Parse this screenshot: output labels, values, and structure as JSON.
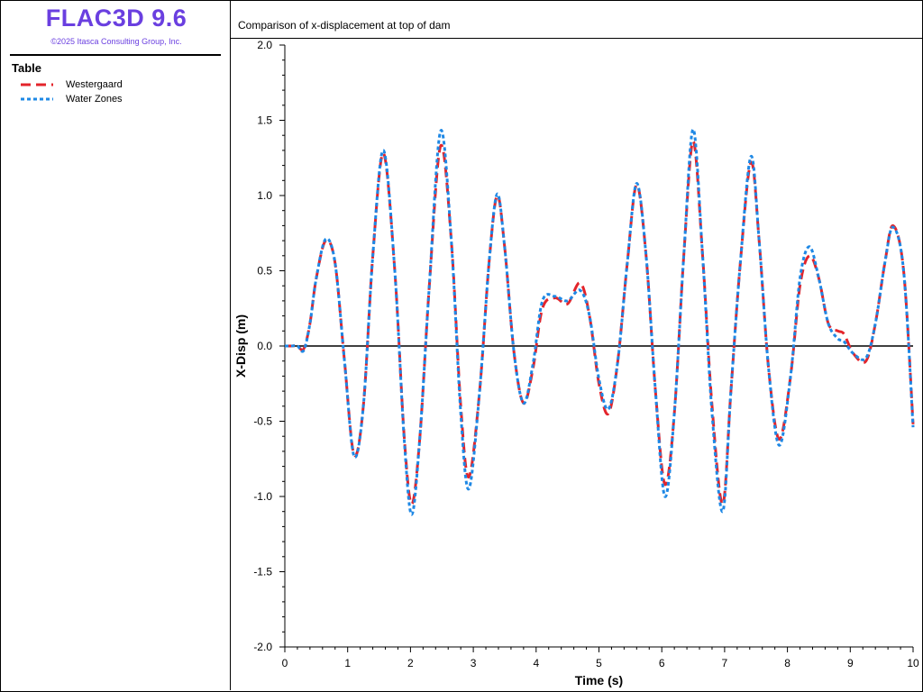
{
  "app": {
    "title": "FLAC3D 9.6",
    "copyright": "©2025 Itasca Consulting Group, Inc."
  },
  "legend": {
    "title": "Table",
    "items": [
      {
        "label": "Westergaard",
        "color": "#e3242b",
        "style": "dashed-long"
      },
      {
        "label": "Water Zones",
        "color": "#1e88e5",
        "style": "dashed-short"
      }
    ]
  },
  "chart_data": {
    "type": "line",
    "title": "Comparison of x-displacement at top of dam",
    "xlabel": "Time (s)",
    "ylabel": "X-Disp (m)",
    "xlim": [
      0,
      10
    ],
    "ylim": [
      -2.0,
      2.0
    ],
    "x_ticks": [
      "0",
      "1",
      "2",
      "3",
      "4",
      "5",
      "6",
      "7",
      "8",
      "9",
      "10"
    ],
    "y_ticks": [
      "2.0",
      "1.5",
      "1.0",
      "0.5",
      "0.0",
      "-0.5",
      "-1.0",
      "-1.5",
      "-2.0"
    ],
    "zero_line": true,
    "series": [
      {
        "name": "Westergaard",
        "color": "#e3242b",
        "x": [
          0,
          0.1,
          0.2,
          0.3,
          0.4,
          0.5,
          0.65,
          0.8,
          0.95,
          1.1,
          1.25,
          1.4,
          1.57,
          1.75,
          1.9,
          2.02,
          2.15,
          2.3,
          2.48,
          2.65,
          2.8,
          2.93,
          3.1,
          3.25,
          3.38,
          3.5,
          3.65,
          3.8,
          3.95,
          4.1,
          4.3,
          4.5,
          4.7,
          4.85,
          5.0,
          5.15,
          5.3,
          5.45,
          5.6,
          5.75,
          5.9,
          6.05,
          6.2,
          6.35,
          6.5,
          6.65,
          6.8,
          6.97,
          7.1,
          7.25,
          7.42,
          7.55,
          7.7,
          7.87,
          8.05,
          8.2,
          8.35,
          8.5,
          8.65,
          8.8,
          8.9,
          9.05,
          9.25,
          9.4,
          9.55,
          9.68,
          9.85,
          10.0
        ],
        "y": [
          0.0,
          0.0,
          0.0,
          -0.02,
          0.15,
          0.45,
          0.7,
          0.55,
          -0.1,
          -0.72,
          -0.4,
          0.6,
          1.28,
          0.5,
          -0.6,
          -1.05,
          -0.6,
          0.4,
          1.33,
          0.7,
          -0.4,
          -0.87,
          -0.3,
          0.55,
          1.0,
          0.65,
          -0.05,
          -0.38,
          -0.15,
          0.25,
          0.32,
          0.28,
          0.42,
          0.2,
          -0.25,
          -0.45,
          -0.1,
          0.55,
          1.07,
          0.6,
          -0.3,
          -0.92,
          -0.45,
          0.6,
          1.36,
          0.6,
          -0.4,
          -1.05,
          -0.3,
          0.55,
          1.22,
          0.7,
          -0.15,
          -0.62,
          -0.2,
          0.4,
          0.6,
          0.45,
          0.15,
          0.1,
          0.08,
          -0.05,
          -0.1,
          0.15,
          0.55,
          0.8,
          0.5,
          -0.52
        ]
      },
      {
        "name": "Water Zones",
        "color": "#1e88e5",
        "x": [
          0,
          0.1,
          0.2,
          0.3,
          0.4,
          0.5,
          0.65,
          0.8,
          0.95,
          1.1,
          1.25,
          1.4,
          1.57,
          1.75,
          1.9,
          2.02,
          2.15,
          2.3,
          2.48,
          2.65,
          2.8,
          2.93,
          3.1,
          3.25,
          3.38,
          3.5,
          3.65,
          3.8,
          3.95,
          4.1,
          4.3,
          4.5,
          4.7,
          4.85,
          5.0,
          5.15,
          5.3,
          5.45,
          5.6,
          5.75,
          5.9,
          6.05,
          6.2,
          6.35,
          6.5,
          6.65,
          6.8,
          6.97,
          7.1,
          7.25,
          7.42,
          7.55,
          7.7,
          7.87,
          8.05,
          8.2,
          8.35,
          8.5,
          8.65,
          8.8,
          8.9,
          9.05,
          9.25,
          9.4,
          9.55,
          9.68,
          9.85,
          10.0
        ],
        "y": [
          0.0,
          0.0,
          0.0,
          -0.03,
          0.15,
          0.45,
          0.71,
          0.55,
          -0.1,
          -0.73,
          -0.4,
          0.6,
          1.3,
          0.5,
          -0.62,
          -1.12,
          -0.6,
          0.4,
          1.43,
          0.7,
          -0.45,
          -0.95,
          -0.3,
          0.55,
          1.01,
          0.65,
          -0.05,
          -0.38,
          -0.12,
          0.3,
          0.33,
          0.3,
          0.37,
          0.2,
          -0.22,
          -0.42,
          -0.1,
          0.55,
          1.08,
          0.6,
          -0.3,
          -1.0,
          -0.45,
          0.6,
          1.44,
          0.6,
          -0.45,
          -1.1,
          -0.3,
          0.55,
          1.26,
          0.7,
          -0.15,
          -0.66,
          -0.2,
          0.45,
          0.66,
          0.45,
          0.15,
          0.05,
          0.03,
          -0.05,
          -0.08,
          0.15,
          0.55,
          0.79,
          0.5,
          -0.54
        ]
      }
    ]
  }
}
